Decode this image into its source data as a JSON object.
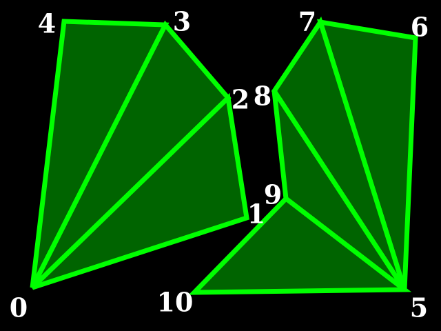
{
  "colors": {
    "background": "#000000",
    "fill": "#006400",
    "stroke": "#00FF00",
    "label": "#FFFFFF"
  },
  "vertices": [
    {
      "id": 0,
      "label": "0"
    },
    {
      "id": 1,
      "label": "1"
    },
    {
      "id": 2,
      "label": "2"
    },
    {
      "id": 3,
      "label": "3"
    },
    {
      "id": 4,
      "label": "4"
    },
    {
      "id": 5,
      "label": "5"
    },
    {
      "id": 6,
      "label": "6"
    },
    {
      "id": 7,
      "label": "7"
    },
    {
      "id": 8,
      "label": "8"
    },
    {
      "id": 9,
      "label": "9"
    },
    {
      "id": 10,
      "label": "10"
    }
  ],
  "polygons": [
    {
      "name": "left-polygon",
      "vertices": [
        0,
        1,
        2,
        3,
        4
      ]
    },
    {
      "name": "right-polygon",
      "vertices": [
        10,
        5,
        6,
        7,
        8,
        9
      ]
    }
  ],
  "triangles": [
    [
      0,
      3,
      4
    ],
    [
      0,
      2,
      3
    ],
    [
      0,
      1,
      2
    ],
    [
      5,
      6,
      7
    ],
    [
      5,
      7,
      8
    ],
    [
      5,
      8,
      9
    ],
    [
      5,
      9,
      10
    ]
  ]
}
